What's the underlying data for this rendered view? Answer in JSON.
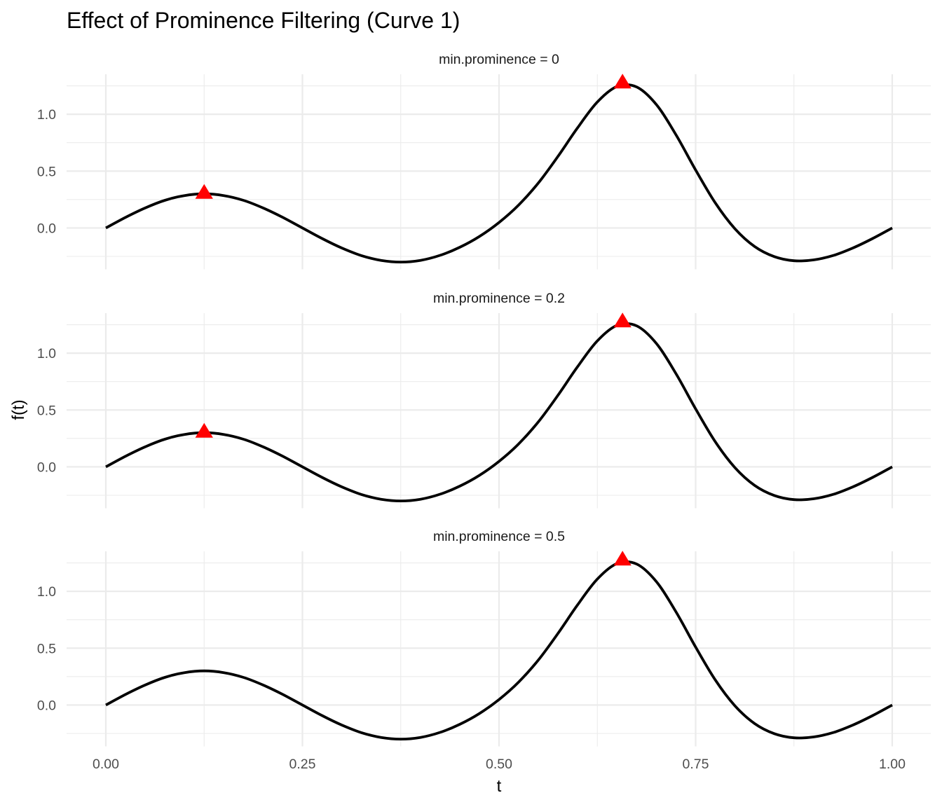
{
  "chart_data": {
    "type": "line",
    "title": "Effect of Prominence Filtering (Curve 1)",
    "xlabel": "t",
    "ylabel": "f(t)",
    "xlim": [
      -0.05,
      1.05
    ],
    "ylim": [
      -0.364,
      1.352
    ],
    "x_ticks": [
      0,
      0.25,
      0.5,
      0.75,
      1
    ],
    "x_tick_labels": [
      "0.00",
      "0.25",
      "0.50",
      "0.75",
      "1.00"
    ],
    "y_ticks": [
      0,
      0.5,
      1
    ],
    "y_tick_labels": [
      "0.0",
      "0.5",
      "1.0"
    ],
    "grid": true,
    "line_color": "#000000",
    "peak_color": "#ff0000",
    "peak_marker": "triangle",
    "x": [
      0,
      0.025,
      0.05,
      0.075,
      0.1,
      0.125,
      0.15,
      0.175,
      0.2,
      0.225,
      0.25,
      0.275,
      0.3,
      0.325,
      0.35,
      0.375,
      0.4,
      0.425,
      0.45,
      0.475,
      0.5,
      0.525,
      0.55,
      0.575,
      0.6,
      0.625,
      0.65,
      0.675,
      0.7,
      0.725,
      0.75,
      0.775,
      0.8,
      0.825,
      0.85,
      0.875,
      0.9,
      0.925,
      0.95,
      0.975,
      1.0
    ],
    "y": [
      0.0,
      0.093,
      0.176,
      0.243,
      0.285,
      0.3,
      0.285,
      0.243,
      0.176,
      0.093,
      0.0,
      -0.093,
      -0.176,
      -0.243,
      -0.285,
      -0.3,
      -0.285,
      -0.241,
      -0.17,
      -0.075,
      0.048,
      0.202,
      0.396,
      0.63,
      0.882,
      1.108,
      1.244,
      1.24,
      1.086,
      0.82,
      0.51,
      0.22,
      -0.007,
      -0.163,
      -0.252,
      -0.288,
      -0.281,
      -0.242,
      -0.176,
      -0.093,
      0.0
    ],
    "panels": [
      {
        "strip_label": "min.prominence = 0",
        "min_prominence": 0,
        "peaks": [
          {
            "t": 0.125,
            "value": 0.3
          },
          {
            "t": 0.657,
            "value": 1.27
          }
        ]
      },
      {
        "strip_label": "min.prominence = 0.2",
        "min_prominence": 0.2,
        "peaks": [
          {
            "t": 0.125,
            "value": 0.3
          },
          {
            "t": 0.657,
            "value": 1.27
          }
        ]
      },
      {
        "strip_label": "min.prominence = 0.5",
        "min_prominence": 0.5,
        "peaks": [
          {
            "t": 0.657,
            "value": 1.27
          }
        ]
      }
    ]
  }
}
